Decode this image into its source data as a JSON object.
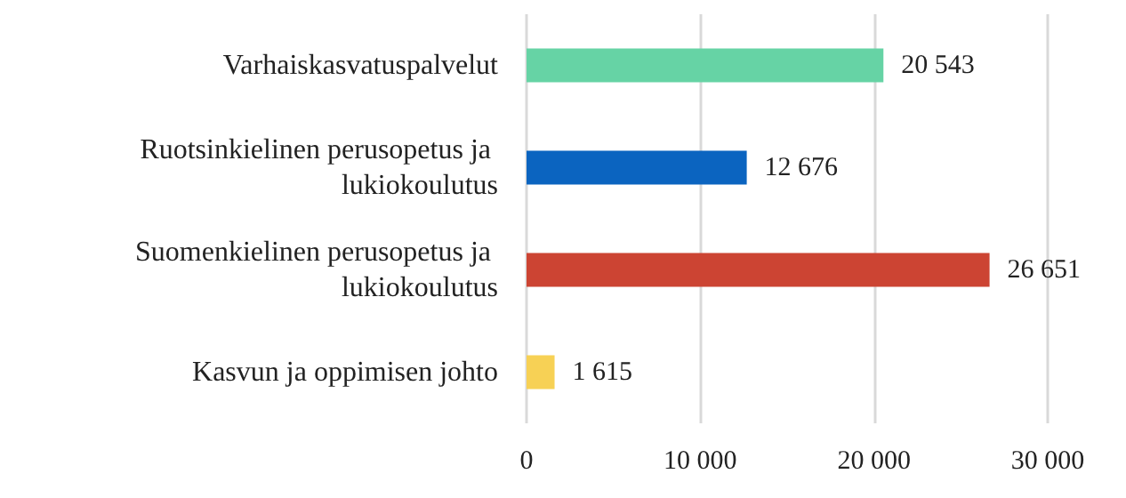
{
  "chart_data": {
    "type": "bar",
    "orientation": "horizontal",
    "categories": [
      "Varhaiskasvatuspalvelut",
      "Ruotsinkielinen perusopetus ja lukiokoulutus",
      "Suomenkielinen perusopetus ja lukiokoulutus",
      "Kasvun ja oppimisen johto"
    ],
    "values": [
      20543,
      12676,
      26651,
      1615
    ],
    "colors": [
      "#66d3a5",
      "#0b64c0",
      "#cc4433",
      "#f7d155"
    ],
    "value_labels": [
      "20 543",
      "12 676",
      "26 651",
      "1 615"
    ],
    "xlim": [
      0,
      30000
    ],
    "xticks": [
      {
        "value": 0,
        "label": "0"
      },
      {
        "value": 10000,
        "label": "10 000"
      },
      {
        "value": 20000,
        "label": "20 000"
      },
      {
        "value": 30000,
        "label": "30 000"
      }
    ],
    "grid": "x"
  }
}
